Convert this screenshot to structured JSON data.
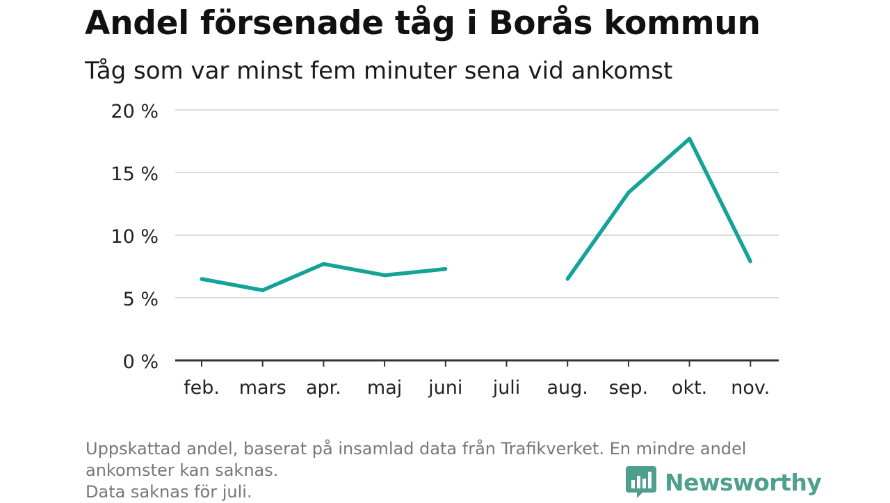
{
  "chart_data": {
    "type": "line",
    "title": "Andel försenade tåg i Borås kommun",
    "subtitle": "Tåg som var minst fem minuter sena vid ankomst",
    "categories": [
      "feb.",
      "mars",
      "apr.",
      "maj",
      "juni",
      "juli",
      "aug.",
      "sep.",
      "okt.",
      "nov."
    ],
    "series": [
      {
        "values": [
          6.5,
          5.6,
          7.7,
          6.8,
          7.3,
          null,
          6.5,
          13.4,
          17.7,
          7.9
        ]
      }
    ],
    "ylim": [
      0,
      20
    ],
    "yticks": [
      {
        "value": 0,
        "label": "0 %"
      },
      {
        "value": 5,
        "label": "5 %"
      },
      {
        "value": 10,
        "label": "10 %"
      },
      {
        "value": 15,
        "label": "15 %"
      },
      {
        "value": 20,
        "label": "20 %"
      }
    ],
    "grid": true,
    "line_color": "#13a398"
  },
  "footnote": {
    "line1": "Uppskattad andel, baserat på insamlad data från Trafikverket. En mindre andel",
    "line2": "ankomster kan saknas.",
    "line3": "Data saknas för juli."
  },
  "brand": {
    "name": "Newsworthy",
    "icon": "bar-chart-logo-icon",
    "color": "#4f9f8f"
  }
}
